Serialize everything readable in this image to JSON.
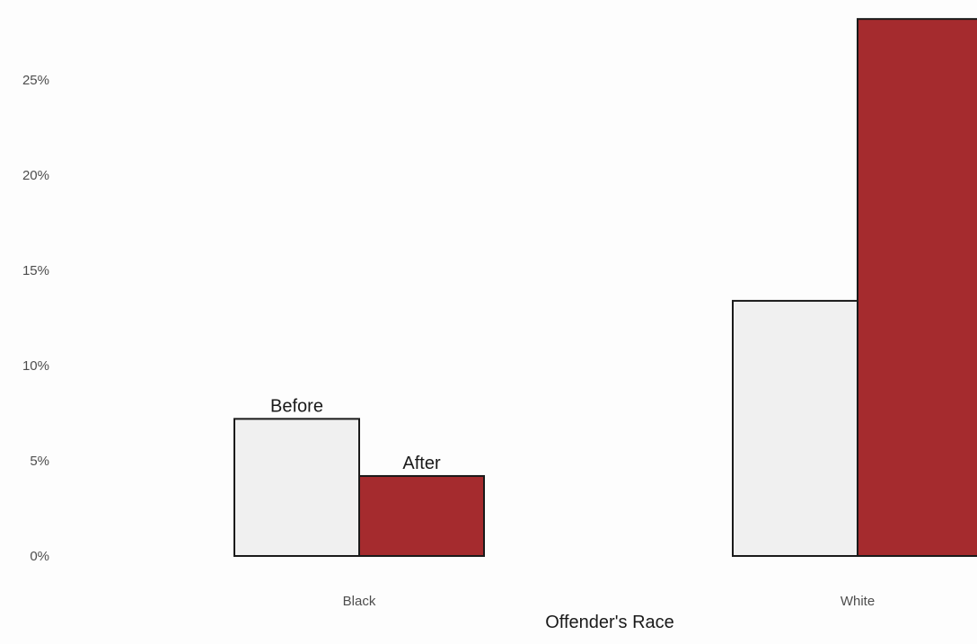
{
  "chart_data": {
    "type": "bar",
    "xlabel": "Offender's Race",
    "ylabel": "",
    "categories": [
      "Black",
      "White"
    ],
    "series": [
      {
        "name": "Before",
        "values": [
          7.2,
          13.4
        ],
        "color": "#f0f0f0"
      },
      {
        "name": "After",
        "values": [
          4.2,
          28.2
        ],
        "color": "#a52b2e"
      }
    ],
    "bar_labels": [
      "Before",
      "After"
    ],
    "ylim": [
      0,
      28.2
    ],
    "yticks": [
      0,
      5,
      10,
      15,
      20,
      25
    ],
    "ytick_labels": [
      "0%",
      "5%",
      "10%",
      "15%",
      "20%",
      "25%"
    ],
    "grid": false,
    "legend": "none"
  }
}
